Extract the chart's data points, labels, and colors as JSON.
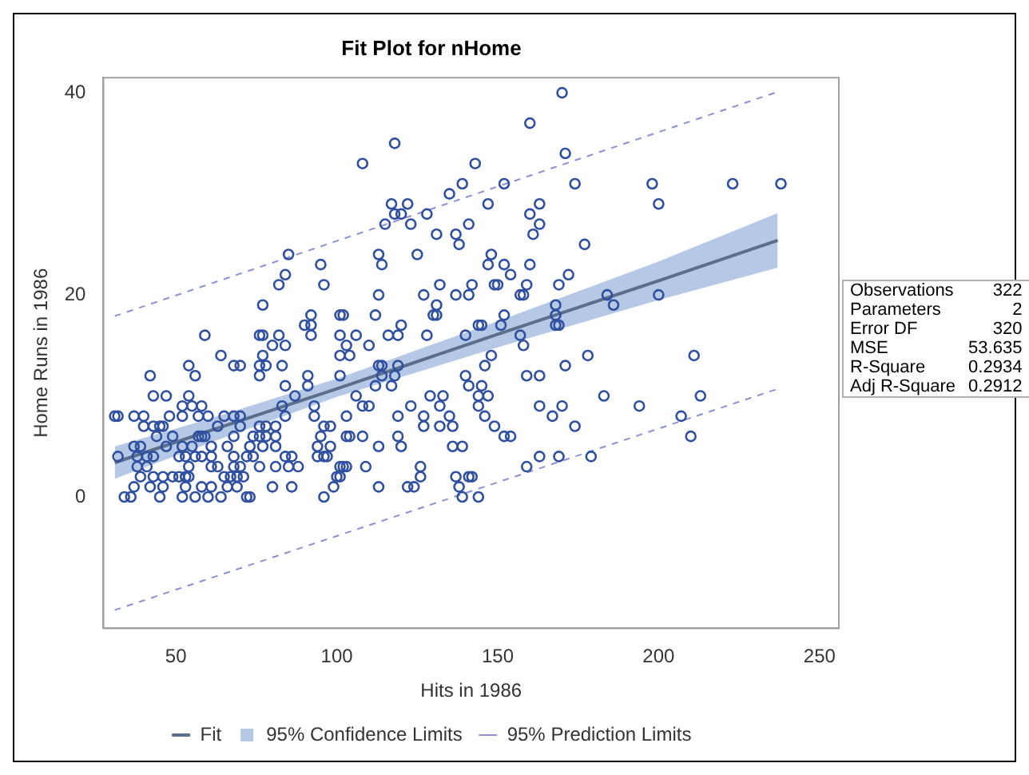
{
  "chart_data": {
    "type": "scatter",
    "title": "Fit Plot for nHome",
    "xlabel": "Hits in 1986",
    "ylabel": "Home Runs in 1986",
    "xlim": [
      27.5,
      256
    ],
    "xticks": [
      50,
      100,
      150,
      200,
      250
    ],
    "ylim": [
      -13,
      41.5
    ],
    "yticks": [
      0,
      20,
      40
    ],
    "grid": false,
    "legend": "bottom",
    "annotations": [
      "Observations 322",
      "Parameters 2",
      "Error DF 320",
      "MSE 53.635",
      "R-Square 0.2934",
      "Adj R-Square 0.2912"
    ],
    "series": [
      {
        "name": "Fit",
        "type": "line",
        "color": "#5b6e8c",
        "x": [
          31,
          60,
          100,
          150,
          200,
          237
        ],
        "values": [
          3.4,
          6.5,
          10.7,
          16.1,
          21.4,
          25.4
        ],
        "lower": [
          1.8,
          5.3,
          9.9,
          14.8,
          19.5,
          22.7
        ],
        "upper": [
          5.0,
          7.7,
          11.7,
          17.4,
          23.3,
          28.1
        ]
      },
      {
        "name": "95% Confidence Limits",
        "type": "area",
        "color": "#b5c9e6"
      },
      {
        "name": "95% Prediction Limits",
        "type": "line",
        "line_style": "dashed",
        "color": "#8c8fd4",
        "x": [
          31,
          237
        ],
        "values": [
          17.9,
          40.1
        ]
      },
      {
        "type": "line",
        "line_style": "dashed",
        "color": "#8c8fd4",
        "x": [
          31,
          237
        ],
        "values": [
          -11.2,
          10.7
        ]
      },
      {
        "marker": "circle",
        "color": "#2f4f9f",
        "x": [
          170,
          160,
          118,
          171,
          108,
          143,
          139,
          152,
          174,
          198,
          223,
          238,
          135,
          117,
          122,
          147,
          163,
          200,
          118,
          120,
          128,
          160,
          115,
          123,
          141,
          163,
          131,
          137,
          161,
          138,
          177,
          85,
          113,
          125,
          148,
          95,
          114,
          147,
          152,
          160,
          84,
          154,
          172,
          82,
          96,
          132,
          142,
          149,
          150,
          159,
          169,
          113,
          127,
          137,
          141,
          157,
          158,
          184,
          200,
          77,
          131,
          168,
          186,
          92,
          101,
          102,
          112,
          130,
          131,
          152,
          168,
          90,
          92,
          120,
          144,
          145,
          151,
          168,
          169,
          59,
          76,
          77,
          82,
          92,
          101,
          106,
          116,
          119,
          128,
          140,
          157,
          80,
          84,
          103,
          110,
          158,
          64,
          77,
          101,
          104,
          148,
          178,
          211,
          54,
          68,
          70,
          76,
          78,
          83,
          113,
          114,
          119,
          146,
          171,
          42,
          56,
          76,
          91,
          101,
          114,
          118,
          140,
          159,
          163,
          84,
          91,
          112,
          117,
          141,
          145,
          43,
          47,
          54,
          87,
          106,
          129,
          133,
          144,
          147,
          183,
          213,
          52,
          55,
          58,
          83,
          93,
          108,
          110,
          123,
          132,
          144,
          163,
          170,
          194,
          31,
          32,
          37,
          40,
          48,
          52,
          57,
          60,
          65,
          68,
          70,
          84,
          93,
          103,
          119,
          127,
          135,
          146,
          167,
          207,
          40,
          43,
          45,
          46,
          63,
          70,
          76,
          78,
          81,
          96,
          98,
          127,
          132,
          136,
          149,
          174,
          44,
          49,
          57,
          58,
          59,
          68,
          74,
          76,
          78,
          81,
          95,
          103,
          104,
          108,
          119,
          152,
          154,
          210,
          37,
          39,
          47,
          52,
          55,
          61,
          66,
          73,
          77,
          81,
          94,
          98,
          113,
          120,
          136,
          139,
          32,
          38,
          41,
          43,
          51,
          53,
          56,
          58,
          61,
          68,
          72,
          74,
          84,
          86,
          94,
          96,
          97,
          163,
          169,
          179,
          38,
          41,
          54,
          61,
          63,
          68,
          70,
          76,
          81,
          85,
          88,
          101,
          102,
          103,
          109,
          126,
          159,
          39,
          43,
          46,
          49,
          51,
          53,
          54,
          65,
          67,
          69,
          71,
          100,
          101,
          126,
          137,
          141,
          142,
          37,
          42,
          46,
          53,
          58,
          61,
          66,
          69,
          80,
          86,
          99,
          113,
          122,
          124,
          138,
          34,
          36,
          45,
          52,
          56,
          60,
          64,
          72,
          73,
          96,
          139,
          144
        ],
        "values": [
          40,
          37,
          35,
          34,
          33,
          33,
          31,
          31,
          31,
          31,
          31,
          31,
          30,
          29,
          29,
          29,
          29,
          29,
          28,
          28,
          28,
          28,
          27,
          27,
          27,
          27,
          26,
          26,
          26,
          25,
          25,
          24,
          24,
          24,
          24,
          23,
          23,
          23,
          23,
          23,
          22,
          22,
          22,
          21,
          21,
          21,
          21,
          21,
          21,
          21,
          21,
          20,
          20,
          20,
          20,
          20,
          20,
          20,
          20,
          19,
          19,
          19,
          19,
          18,
          18,
          18,
          18,
          18,
          18,
          18,
          18,
          17,
          17,
          17,
          17,
          17,
          17,
          17,
          17,
          16,
          16,
          16,
          16,
          16,
          16,
          16,
          16,
          16,
          16,
          16,
          16,
          15,
          15,
          15,
          15,
          15,
          14,
          14,
          14,
          14,
          14,
          14,
          14,
          13,
          13,
          13,
          13,
          13,
          13,
          13,
          13,
          13,
          13,
          13,
          12,
          12,
          12,
          12,
          12,
          12,
          12,
          12,
          12,
          12,
          11,
          11,
          11,
          11,
          11,
          11,
          10,
          10,
          10,
          10,
          10,
          10,
          10,
          10,
          10,
          10,
          10,
          9,
          9,
          9,
          9,
          9,
          9,
          9,
          9,
          9,
          9,
          9,
          9,
          9,
          8,
          8,
          8,
          8,
          8,
          8,
          8,
          8,
          8,
          8,
          8,
          8,
          8,
          8,
          8,
          8,
          8,
          8,
          8,
          8,
          7,
          7,
          7,
          7,
          7,
          7,
          7,
          7,
          7,
          7,
          7,
          7,
          7,
          7,
          7,
          7,
          6,
          6,
          6,
          6,
          6,
          6,
          6,
          6,
          6,
          6,
          6,
          6,
          6,
          6,
          6,
          6,
          6,
          6,
          5,
          5,
          5,
          5,
          5,
          5,
          5,
          5,
          5,
          5,
          5,
          5,
          5,
          5,
          5,
          5,
          4,
          4,
          4,
          4,
          4,
          4,
          4,
          4,
          4,
          4,
          4,
          4,
          4,
          4,
          4,
          4,
          4,
          4,
          4,
          4,
          3,
          3,
          3,
          3,
          3,
          3,
          3,
          3,
          3,
          3,
          3,
          3,
          3,
          3,
          3,
          3,
          3,
          2,
          2,
          2,
          2,
          2,
          2,
          2,
          2,
          2,
          2,
          2,
          2,
          2,
          2,
          2,
          2,
          2,
          1,
          1,
          1,
          1,
          1,
          1,
          1,
          1,
          1,
          1,
          1,
          1,
          1,
          1,
          1,
          0,
          0,
          0,
          0,
          0,
          0,
          0,
          0,
          0,
          0,
          0,
          0
        ]
      }
    ]
  }
}
